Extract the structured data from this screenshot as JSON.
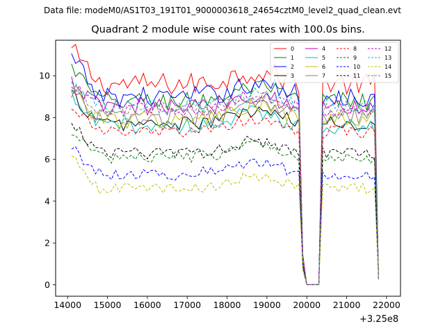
{
  "figure": {
    "suptitle": "Data file: modeM0/AS1T03_191T01_9000003618_24654cztM0_level2_quad_clean.evt",
    "title": "Quadrant 2 module wise count rates with 100.0s bins.",
    "x_offset_label": "+3.25e8"
  },
  "chart_data": {
    "type": "line",
    "title": "Quadrant 2 module wise count rates with 100.0s bins.",
    "xlabel": "",
    "ylabel": "",
    "x_offset": 325000000,
    "xlim": [
      13700,
      22350
    ],
    "ylim": [
      -0.55,
      11.7
    ],
    "xticks": [
      14000,
      15000,
      16000,
      17000,
      18000,
      19000,
      20000,
      21000,
      22000
    ],
    "yticks": [
      0,
      2,
      4,
      6,
      8,
      10
    ],
    "grid": false,
    "legend": "top-right",
    "legend_columns": 4,
    "x_start": 14100,
    "x_step": 100,
    "x_end": 21800,
    "dip_windows": [
      [
        19850,
        19950
      ],
      [
        20300,
        20350
      ]
    ],
    "zero_window": [
      20000,
      20300
    ],
    "final_value": 0.25,
    "series": [
      {
        "name": "0",
        "color": "#ff0000",
        "style": "solid",
        "level": 9.6,
        "start": 11.2,
        "noise": 0.55
      },
      {
        "name": "1",
        "color": "#008000",
        "style": "solid",
        "level": 8.8,
        "start": 10.4,
        "noise": 0.45
      },
      {
        "name": "2",
        "color": "#0000ff",
        "style": "solid",
        "level": 9.0,
        "start": 10.8,
        "noise": 0.5
      },
      {
        "name": "3",
        "color": "#000000",
        "style": "solid",
        "level": 7.7,
        "start": 9.1,
        "noise": 0.35
      },
      {
        "name": "4",
        "color": "#bf00bf",
        "style": "solid",
        "level": 8.5,
        "start": 9.6,
        "noise": 0.45
      },
      {
        "name": "5",
        "color": "#00bfbf",
        "style": "solid",
        "level": 7.6,
        "start": 8.9,
        "noise": 0.4
      },
      {
        "name": "6",
        "color": "#bfbf00",
        "style": "solid",
        "level": 7.9,
        "start": 9.4,
        "noise": 0.45
      },
      {
        "name": "7",
        "color": "#808080",
        "style": "solid",
        "level": 8.0,
        "start": 9.3,
        "noise": 0.45
      },
      {
        "name": "8",
        "color": "#ff0000",
        "style": "dashed",
        "level": 7.3,
        "start": 8.6,
        "noise": 0.3
      },
      {
        "name": "9",
        "color": "#008000",
        "style": "dashed",
        "level": 6.1,
        "start": 7.3,
        "noise": 0.28
      },
      {
        "name": "10",
        "color": "#0000ff",
        "style": "dashed",
        "level": 5.3,
        "start": 6.6,
        "noise": 0.3
      },
      {
        "name": "11",
        "color": "#000000",
        "style": "dashed",
        "level": 6.3,
        "start": 7.8,
        "noise": 0.28
      },
      {
        "name": "12",
        "color": "#bf00bf",
        "style": "dashed",
        "level": 8.4,
        "start": 9.5,
        "noise": 0.35
      },
      {
        "name": "13",
        "color": "#00bfbf",
        "style": "dashed",
        "level": 8.5,
        "start": 9.7,
        "noise": 0.35
      },
      {
        "name": "14",
        "color": "#bfbf00",
        "style": "dashed",
        "level": 4.6,
        "start": 6.1,
        "noise": 0.25
      },
      {
        "name": "15",
        "color": "#808080",
        "style": "dashed",
        "level": 8.4,
        "start": 9.6,
        "noise": 0.35
      }
    ]
  }
}
